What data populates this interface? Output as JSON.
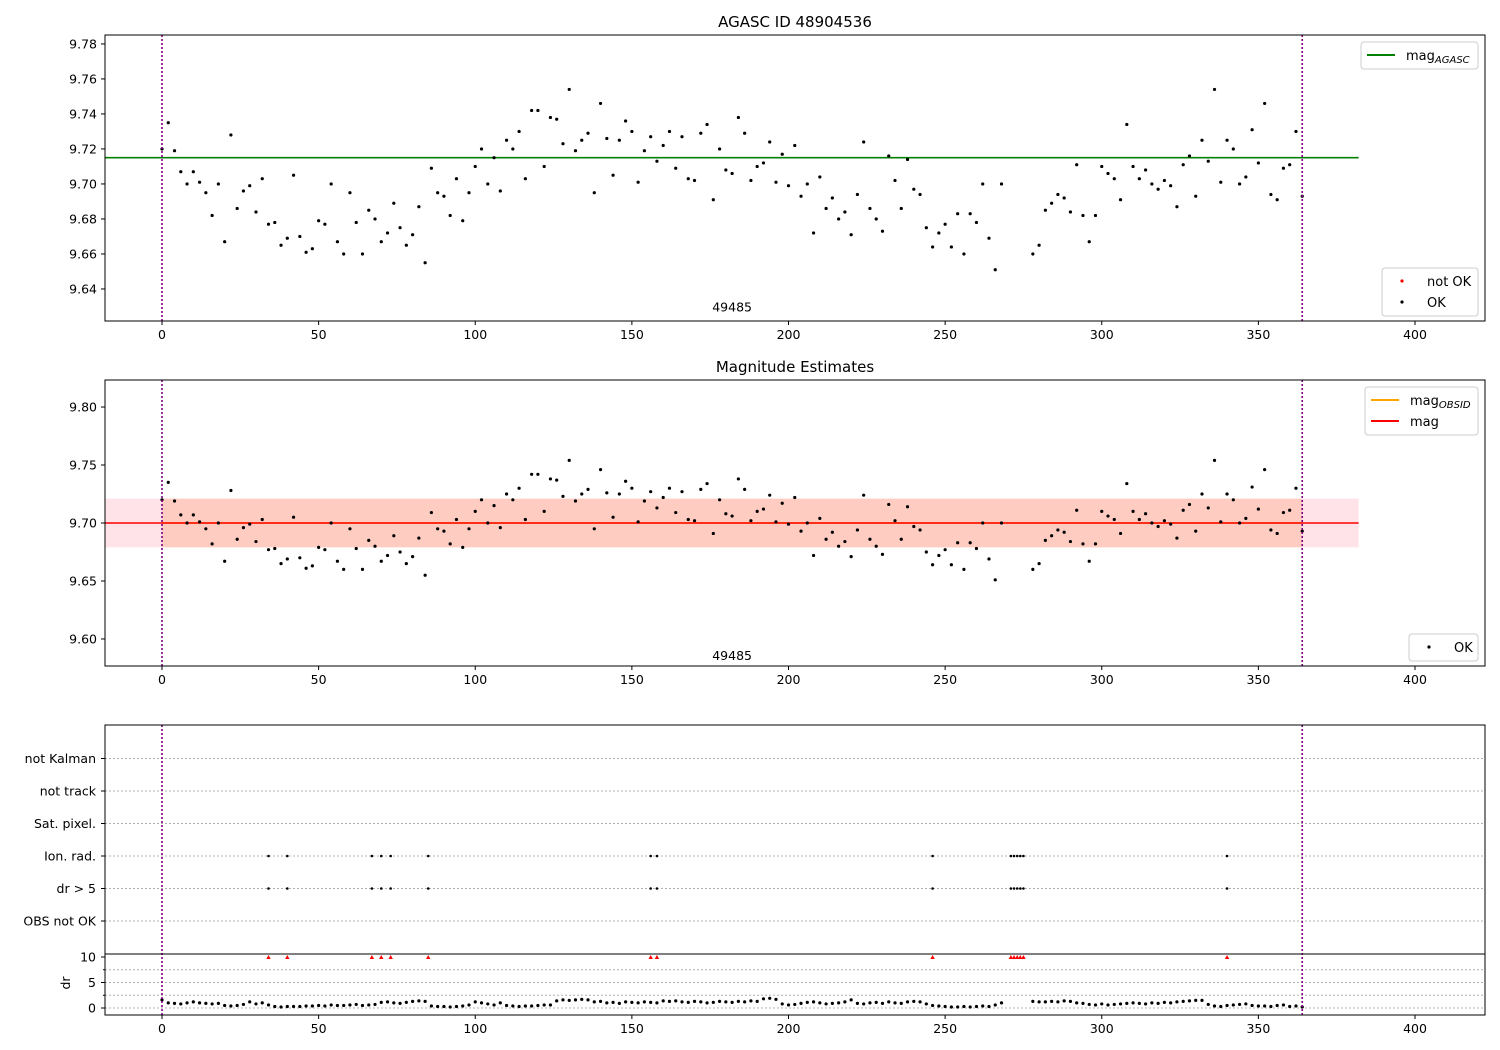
{
  "colors": {
    "ok": "#000000",
    "not_ok": "#ff0000",
    "agasc": "#008000",
    "obsid": "#ffa500",
    "mag": "#ff0000",
    "band_obs": "#ffa07a",
    "band_mag": "#ffc0cb",
    "vline": "#800080",
    "grid": "#b0b0b0"
  },
  "chart_data": [
    {
      "type": "scatter",
      "title": "AGASC ID 48904536",
      "xlim": [
        -18,
        422
      ],
      "ylim": [
        9.6217,
        9.7851
      ],
      "xticks": [
        0,
        50,
        100,
        150,
        200,
        250,
        300,
        350,
        400
      ],
      "yticks": [
        9.64,
        9.66,
        9.68,
        9.7,
        9.72,
        9.74,
        9.76,
        9.78
      ],
      "ytick_labels": [
        "9.64",
        "9.66",
        "9.68",
        "9.70",
        "9.72",
        "9.74",
        "9.76",
        "9.78"
      ],
      "mag_agasc": 9.715,
      "hline_x_range": [
        -18,
        382
      ],
      "vlines": [
        0,
        364
      ],
      "annotation": {
        "text": "49485",
        "x": 182,
        "y": 9.627
      },
      "legend_top": [
        {
          "label": "mag",
          "sub": "AGASC",
          "kind": "line",
          "color": "#008000"
        }
      ],
      "legend_bottom": [
        {
          "label": "not OK",
          "kind": "dot",
          "color": "#ff0000"
        },
        {
          "label": "OK",
          "kind": "dot",
          "color": "#000000"
        }
      ],
      "legend_placement": [
        "top-right",
        "bottom-right"
      ]
    },
    {
      "type": "scatter",
      "title": "Magnitude Estimates",
      "xlim": [
        -18,
        422
      ],
      "ylim": [
        9.5767,
        9.8233
      ],
      "xticks": [
        0,
        50,
        100,
        150,
        200,
        250,
        300,
        350,
        400
      ],
      "yticks": [
        9.6,
        9.65,
        9.7,
        9.75,
        9.8
      ],
      "ytick_labels": [
        "9.60",
        "9.65",
        "9.70",
        "9.75",
        "9.80"
      ],
      "mag": 9.7,
      "mag_band": [
        9.679,
        9.721
      ],
      "mag_band_x": [
        -18,
        382
      ],
      "mag_obsid": 9.7,
      "obsid_band": [
        9.679,
        9.721
      ],
      "obsid_band_x": [
        0,
        364
      ],
      "vlines": [
        0,
        364
      ],
      "annotation": {
        "text": "49485",
        "x": 182,
        "y": 9.582
      },
      "legend_top": [
        {
          "label": "mag",
          "sub": "OBSID",
          "kind": "line",
          "color": "#ffa500"
        },
        {
          "label": "mag",
          "kind": "line",
          "color": "#ff0000"
        }
      ],
      "legend_bottom": [
        {
          "label": "OK",
          "kind": "dot",
          "color": "#000000"
        }
      ],
      "legend_placement": [
        "top-right",
        "bottom-right"
      ]
    },
    {
      "type": "scatter",
      "title": "",
      "categories": [
        "OBS not OK",
        "dr > 5",
        "Ion. rad.",
        "Sat. pixel.",
        "not track",
        "not Kalman"
      ],
      "flags": {
        "dr > 5": [
          34,
          40,
          67,
          70,
          73,
          85,
          156,
          158,
          246,
          271,
          272,
          273,
          274,
          275,
          340
        ],
        "Ion. rad.": [
          34,
          40,
          67,
          70,
          73,
          85,
          156,
          158,
          246,
          271,
          272,
          273,
          274,
          275,
          340
        ]
      },
      "dr_ylabel": "dr",
      "dr_yticks": [
        0,
        5,
        10
      ],
      "dr_ylim": [
        -1.4,
        10.6
      ],
      "dr_clip": 10,
      "dr_clipped_t": [
        34,
        40,
        67,
        70,
        73,
        85,
        156,
        158,
        246,
        271,
        272,
        273,
        274,
        275,
        340
      ],
      "xticks": [
        0,
        50,
        100,
        150,
        200,
        250,
        300,
        350,
        400
      ],
      "vlines": [
        0,
        364
      ]
    }
  ],
  "series": [
    {
      "t0": 0,
      "step": 2,
      "mag": [
        9.72,
        9.735,
        9.719,
        9.707,
        9.7,
        9.707,
        9.701,
        9.695,
        9.682,
        9.7,
        9.667,
        9.728,
        9.686,
        9.696,
        9.699,
        9.684,
        9.703,
        9.677,
        9.678,
        9.665,
        9.669,
        9.705,
        9.67,
        9.661,
        9.663,
        9.679,
        9.677,
        9.7,
        9.667,
        9.66,
        9.695,
        9.678,
        9.66,
        9.685,
        9.68,
        9.667,
        9.672,
        9.689,
        9.675,
        9.665,
        9.671,
        9.687,
        9.655,
        9.709,
        9.695,
        9.693,
        9.682,
        9.703,
        9.679,
        9.695,
        9.71,
        9.72,
        9.7,
        9.715,
        9.696,
        9.725,
        9.72,
        9.73,
        9.703,
        9.742,
        9.742,
        9.71,
        9.738,
        9.737,
        9.723,
        9.754,
        9.719,
        9.725,
        9.729,
        9.695,
        9.746,
        9.726,
        9.705,
        9.725,
        9.736,
        9.73,
        9.701,
        9.719,
        9.727,
        9.713,
        9.722,
        9.73,
        9.709,
        9.727,
        9.703,
        9.702,
        9.729,
        9.734,
        9.691,
        9.72,
        9.708,
        9.706,
        9.738,
        9.729,
        9.702,
        9.71,
        9.712,
        9.724,
        9.701,
        9.717,
        9.699,
        9.722,
        9.693,
        9.7,
        9.672,
        9.704,
        9.686,
        9.692,
        9.68,
        9.684,
        9.671,
        9.694,
        9.724,
        9.686,
        9.68,
        9.673,
        9.716,
        9.702,
        9.686,
        9.714,
        9.697,
        9.694,
        9.675,
        9.664,
        9.672,
        9.677,
        9.664,
        9.683,
        9.66,
        9.683,
        9.678,
        9.7,
        9.669,
        9.651,
        9.7
      ],
      "dr": [
        1.6,
        1.0,
        0.9,
        0.8,
        1.0,
        1.2,
        1.0,
        0.9,
        0.8,
        0.9,
        0.5,
        0.4,
        0.5,
        0.7,
        1.2,
        0.8,
        1.0,
        0.6,
        0.3,
        0.2,
        0.3,
        0.3,
        0.3,
        0.4,
        0.4,
        0.5,
        0.4,
        0.6,
        0.5,
        0.5,
        0.6,
        0.7,
        0.5,
        0.6,
        0.7,
        1.1,
        1.2,
        1.0,
        0.9,
        1.1,
        1.3,
        1.4,
        1.3,
        0.4,
        0.3,
        0.3,
        0.2,
        0.3,
        0.4,
        0.6,
        1.2,
        1.0,
        0.8,
        0.6,
        1.0,
        0.5,
        0.4,
        0.3,
        0.4,
        0.4,
        0.5,
        0.6,
        0.6,
        1.4,
        1.6,
        1.5,
        1.6,
        1.7,
        1.6,
        1.2,
        1.3,
        1.0,
        1.1,
        0.9,
        1.2,
        1.1,
        1.0,
        1.2,
        1.1,
        1.0,
        1.4,
        1.3,
        1.4,
        1.2,
        1.1,
        1.3,
        1.2,
        1.0,
        1.1,
        1.3,
        1.2,
        1.1,
        1.3,
        1.2,
        1.4,
        1.3,
        1.8,
        1.9,
        1.7,
        0.8,
        0.6,
        0.7,
        0.9,
        1.1,
        1.2,
        1.0,
        0.8,
        0.9,
        1.0,
        1.2,
        1.6,
        0.9,
        0.8,
        1.0,
        1.1,
        0.9,
        1.2,
        1.0,
        0.9,
        1.2,
        1.3,
        1.2,
        0.8,
        0.5,
        0.4,
        0.3,
        0.2,
        0.2,
        0.3,
        0.2,
        0.3,
        0.4,
        0.3,
        0.6,
        1.0
      ]
    },
    {
      "t0": 278,
      "step": 2,
      "mag": [
        9.66,
        9.665,
        9.685,
        9.689,
        9.694,
        9.692,
        9.684,
        9.711,
        9.682,
        9.667,
        9.682,
        9.71,
        9.706,
        9.703,
        9.691,
        9.734,
        9.71,
        9.703,
        9.708,
        9.7,
        9.697,
        9.702,
        9.699,
        9.687,
        9.711,
        9.716,
        9.693,
        9.725,
        9.713,
        9.754,
        9.701,
        9.725,
        9.72,
        9.7,
        9.704,
        9.731,
        9.712,
        9.746,
        9.694,
        9.691,
        9.709,
        9.711,
        9.73,
        9.693
      ],
      "dr": [
        1.3,
        1.2,
        1.2,
        1.3,
        1.2,
        1.4,
        1.3,
        1.0,
        0.9,
        0.7,
        0.6,
        0.8,
        0.6,
        0.7,
        0.8,
        0.9,
        1.0,
        0.9,
        0.8,
        1.0,
        0.9,
        1.1,
        1.0,
        1.2,
        1.3,
        1.4,
        1.5,
        1.5,
        0.7,
        0.4,
        0.3,
        0.5,
        0.6,
        0.7,
        0.8,
        0.5,
        0.4,
        0.4,
        0.3,
        0.5,
        0.6,
        0.3,
        0.4,
        0.2
      ]
    }
  ]
}
